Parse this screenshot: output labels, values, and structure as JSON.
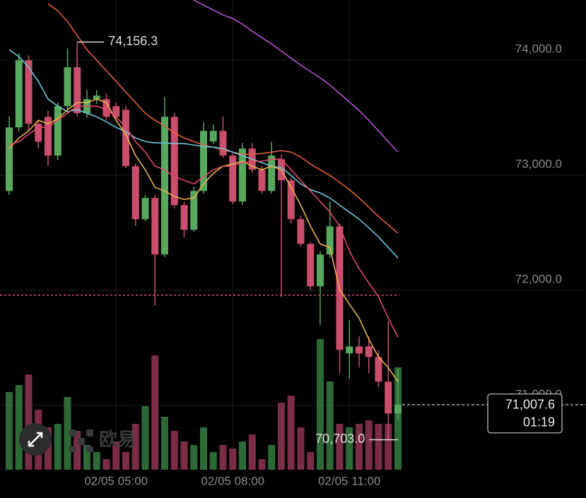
{
  "chart_data": {
    "type": "candlestick",
    "categories": [
      null,
      null,
      null,
      null,
      null,
      null,
      null,
      null,
      null,
      null,
      null,
      "02/05 05:00",
      null,
      null,
      null,
      null,
      null,
      null,
      null,
      null,
      null,
      null,
      null,
      "02/05 08:00",
      null,
      null,
      null,
      null,
      null,
      null,
      null,
      null,
      null,
      null,
      null,
      "02/05 11:00",
      null,
      null,
      null,
      null,
      null
    ],
    "ylim": [
      70442,
      74521
    ],
    "yticks": [
      {
        "value": 71000,
        "label": "71,000.0"
      },
      {
        "value": 72000,
        "label": "72,000.0"
      },
      {
        "value": 73000,
        "label": "73,000.0"
      },
      {
        "value": 74000,
        "label": "74,000.0"
      }
    ],
    "grid": true,
    "up_color": "#58a95e",
    "down_color": "#c94f6d",
    "open": [
      72863,
      73415,
      73998,
      73446,
      73507,
      73170,
      73599,
      73937,
      73538,
      73660,
      73660,
      73599,
      73568,
      73078,
      72618,
      72802,
      72311,
      73507,
      72740,
      72526,
      72863,
      73292,
      73384,
      73170,
      72771,
      73231,
      73047,
      72863,
      73139,
      72955,
      72618,
      72403,
      72035,
      72311,
      72556,
      71452,
      71513,
      71513,
      71421,
      71207,
      70930
    ],
    "high": [
      73510,
      74060,
      74040,
      73480,
      73560,
      73630,
      74100,
      74156.3,
      73740,
      73740,
      73710,
      73630,
      73600,
      73100,
      72830,
      72830,
      73680,
      73540,
      72770,
      72900,
      73460,
      73440,
      73510,
      73190,
      73280,
      73280,
      73080,
      73290,
      73180,
      72980,
      72650,
      72420,
      72340,
      72770,
      72580,
      71740,
      71600,
      71600,
      71480,
      71730,
      71320
    ],
    "low": [
      72830,
      73380,
      73380,
      73230,
      73080,
      73130,
      73560,
      73510,
      73500,
      73620,
      73480,
      73470,
      73060,
      72560,
      72600,
      71869,
      72290,
      72710,
      72460,
      72510,
      72840,
      73270,
      73150,
      72750,
      72740,
      73020,
      72840,
      72840,
      71943,
      72580,
      72380,
      72000,
      71700,
      72280,
      71280,
      71230,
      71330,
      71280,
      71160,
      70703,
      70880
    ],
    "close": [
      73415,
      73998,
      73446,
      73290,
      73170,
      73599,
      73937,
      73538,
      73660,
      73691,
      73507,
      73507,
      73078,
      72618,
      72802,
      72311,
      73507,
      72740,
      72526,
      72863,
      73384,
      73384,
      73170,
      72771,
      73231,
      73047,
      72863,
      73170,
      72955,
      72618,
      72403,
      72035,
      72311,
      72556,
      71483,
      71513,
      71452,
      71421,
      71207,
      70930,
      71007.6
    ],
    "lines": [
      {
        "color": "#b455d6",
        "values": [
          null,
          null,
          null,
          null,
          null,
          null,
          null,
          null,
          null,
          null,
          null,
          null,
          null,
          null,
          null,
          null,
          null,
          null,
          null,
          74519,
          74477,
          74434,
          74391,
          74360,
          74311,
          74250,
          74194,
          74139,
          74078,
          74016,
          73955,
          73900,
          73845,
          73783,
          73710,
          73636,
          73562,
          73477,
          73384,
          73292,
          73200
        ]
      },
      {
        "color": "#e2603c",
        "values": [
          null,
          null,
          null,
          null,
          74489,
          74427,
          74335,
          74213,
          74090,
          73998,
          73906,
          73814,
          73722,
          73630,
          73538,
          73477,
          73427,
          73366,
          73323,
          73292,
          73262,
          73243,
          73219,
          73200,
          73182,
          73182,
          73188,
          73200,
          73213,
          73200,
          73157,
          73096,
          73047,
          72998,
          72937,
          72875,
          72802,
          72722,
          72642,
          72569,
          72495
        ]
      },
      {
        "color": "#6cc8da",
        "values": [
          74090,
          74029,
          73937,
          73814,
          73661,
          73599,
          73550,
          73569,
          73538,
          73507,
          73464,
          73415,
          73378,
          73323,
          73292,
          73280,
          73280,
          73274,
          73274,
          73262,
          73249,
          73243,
          73231,
          73200,
          73170,
          73139,
          73108,
          73078,
          73065,
          72998,
          72924,
          72875,
          72845,
          72802,
          72740,
          72679,
          72618,
          72544,
          72464,
          72372,
          72280
        ]
      },
      {
        "color": "#e9b24a",
        "values": [
          73231,
          73323,
          73384,
          73477,
          73446,
          73489,
          73569,
          73630,
          73630,
          73661,
          73630,
          73477,
          73354,
          73170,
          73047,
          72894,
          72863,
          72814,
          72789,
          72802,
          72924,
          73016,
          73078,
          73096,
          73121,
          73078,
          73047,
          73078,
          73047,
          72894,
          72740,
          72556,
          72403,
          72372,
          72004,
          71881,
          71759,
          71575,
          71421,
          71329,
          71207
        ]
      },
      {
        "color": "#e04a6a",
        "values": [
          73262,
          73292,
          73354,
          73415,
          73415,
          73477,
          73538,
          73599,
          73599,
          73599,
          73569,
          73507,
          73415,
          73292,
          73200,
          73078,
          73047,
          72986,
          72955,
          72924,
          72986,
          73047,
          73078,
          73078,
          73108,
          73121,
          73121,
          73139,
          73139,
          73047,
          72955,
          72863,
          72771,
          72679,
          72556,
          72342,
          72188,
          72065,
          71943,
          71759,
          71593
        ]
      }
    ],
    "volume": [
      110,
      120,
      135,
      85,
      60,
      65,
      103,
      55,
      35,
      25,
      15,
      40,
      25,
      65,
      90,
      162,
      75,
      55,
      40,
      35,
      60,
      25,
      35,
      30,
      40,
      50,
      15,
      35,
      95,
      105,
      60,
      25,
      185,
      125,
      65,
      60,
      65,
      70,
      65,
      65,
      145
    ],
    "volume_ylim": [
      0,
      200
    ],
    "reference_line": 71957,
    "high_label": {
      "value": 74156.3,
      "label": "74,156.3"
    },
    "low_label": {
      "value": 70703,
      "label": "70,703.0"
    },
    "last_price": {
      "value": 71007.6,
      "label": "71,007.6"
    },
    "countdown": "01:19",
    "watermark": "欧易"
  }
}
